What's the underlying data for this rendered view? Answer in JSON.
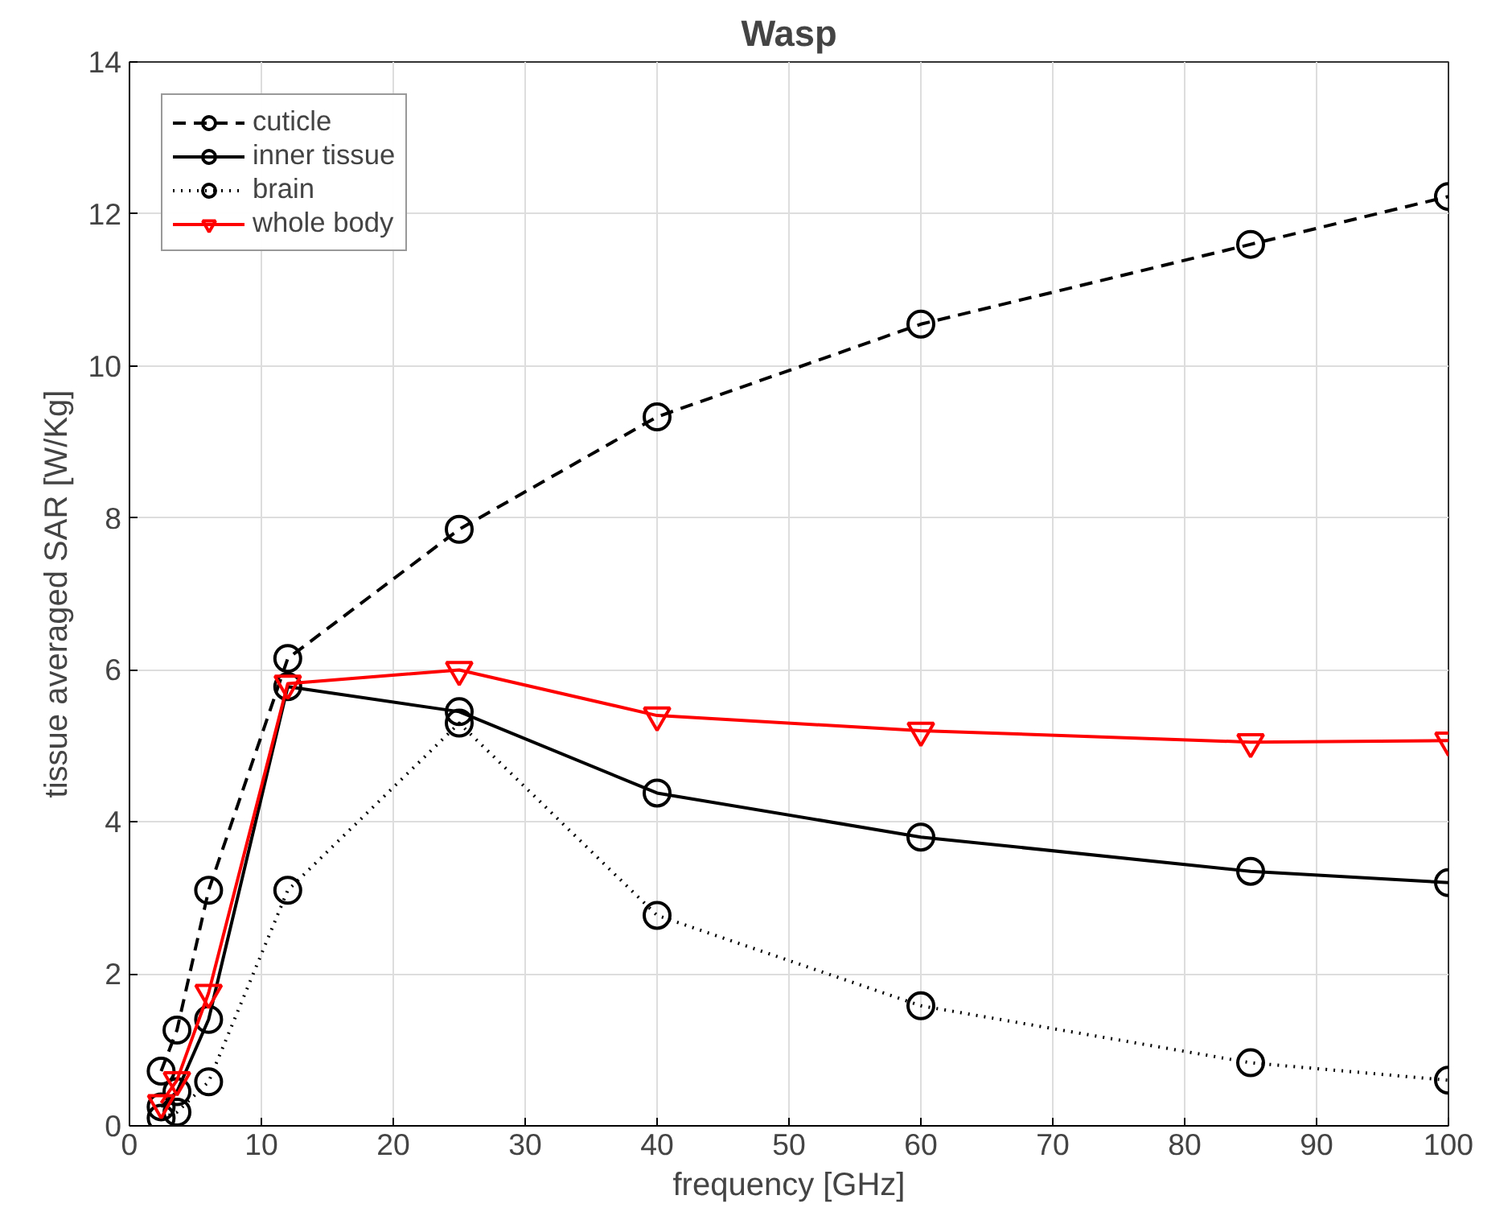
{
  "chart_data": {
    "type": "line",
    "title": "Wasp",
    "xlabel": "frequency [GHz]",
    "ylabel": "tissue averaged SAR [W/Kg]",
    "x": [
      2.4,
      3.6,
      6,
      12,
      25,
      40,
      60,
      85,
      100
    ],
    "series": [
      {
        "name": "cuticle",
        "color": "#000000",
        "marker": "circle",
        "line_style": "dashed",
        "values": [
          0.72,
          1.26,
          3.1,
          6.15,
          7.85,
          9.33,
          10.55,
          11.6,
          12.23
        ]
      },
      {
        "name": "inner tissue",
        "color": "#000000",
        "marker": "circle",
        "line_style": "solid",
        "values": [
          0.25,
          0.45,
          1.4,
          5.78,
          5.45,
          4.38,
          3.8,
          3.35,
          3.2
        ]
      },
      {
        "name": "brain",
        "color": "#000000",
        "marker": "circle",
        "line_style": "dotted",
        "values": [
          0.1,
          0.18,
          0.58,
          3.1,
          5.3,
          2.77,
          1.58,
          0.83,
          0.6
        ]
      },
      {
        "name": "whole body",
        "color": "#ff0000",
        "marker": "triangle",
        "line_style": "solid",
        "values": [
          0.3,
          0.6,
          1.75,
          5.82,
          6.0,
          5.4,
          5.2,
          5.05,
          5.07
        ]
      }
    ],
    "xlim": [
      0,
      100
    ],
    "ylim": [
      0,
      14
    ],
    "xticks": [
      0,
      10,
      20,
      30,
      40,
      50,
      60,
      70,
      80,
      90,
      100
    ],
    "yticks": [
      0,
      2,
      4,
      6,
      8,
      10,
      12,
      14
    ],
    "grid": true,
    "legend": "top left"
  }
}
